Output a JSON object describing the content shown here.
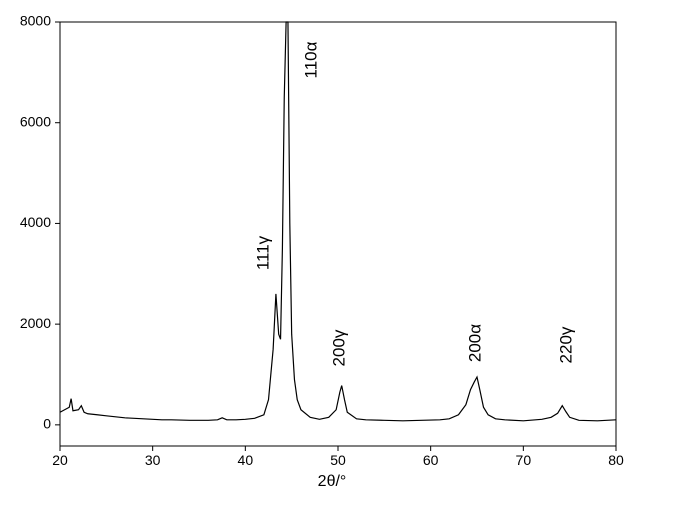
{
  "chart_data": {
    "type": "line",
    "x_label": "2θ/°",
    "x": [
      20,
      20.5,
      21,
      21.2,
      21.4,
      22,
      22.3,
      22.6,
      23,
      24,
      25,
      26,
      27,
      28,
      29,
      30,
      31,
      32,
      33,
      34,
      35,
      36,
      37,
      37.5,
      38,
      39,
      40,
      41,
      42,
      42.5,
      43,
      43.3,
      43.6,
      43.8,
      44,
      44.2,
      44.4,
      44.6,
      44.8,
      45,
      45.3,
      45.6,
      46,
      47,
      48,
      49,
      49.8,
      50.2,
      50.4,
      50.7,
      51,
      52,
      53,
      55,
      57,
      59,
      61,
      62,
      63,
      63.8,
      64.3,
      64.7,
      65,
      65.3,
      65.7,
      66.2,
      67,
      68,
      70,
      72,
      73,
      73.7,
      74.2,
      74.6,
      75,
      76,
      78,
      80
    ],
    "series": [
      {
        "color": "#000000",
        "values": [
          250,
          300,
          350,
          520,
          280,
          300,
          380,
          250,
          220,
          200,
          180,
          160,
          140,
          130,
          120,
          110,
          100,
          100,
          95,
          90,
          90,
          90,
          100,
          140,
          100,
          100,
          110,
          130,
          200,
          500,
          1500,
          2600,
          1800,
          1700,
          3500,
          6500,
          8000,
          8000,
          4000,
          1800,
          900,
          500,
          300,
          150,
          110,
          150,
          300,
          650,
          780,
          500,
          250,
          120,
          100,
          90,
          80,
          90,
          100,
          120,
          200,
          400,
          700,
          850,
          950,
          700,
          350,
          200,
          120,
          100,
          80,
          110,
          150,
          230,
          380,
          260,
          150,
          90,
          80,
          100
        ]
      }
    ],
    "xlim": [
      20,
      80
    ],
    "xticks": [
      20,
      30,
      40,
      50,
      60,
      70,
      80
    ],
    "ylim": [
      -420,
      8000
    ],
    "yticks": [
      0,
      2000,
      4000,
      6000,
      8000
    ],
    "annotations": [
      "111γ",
      "110α",
      "200γ",
      "200α",
      "220γ"
    ]
  }
}
